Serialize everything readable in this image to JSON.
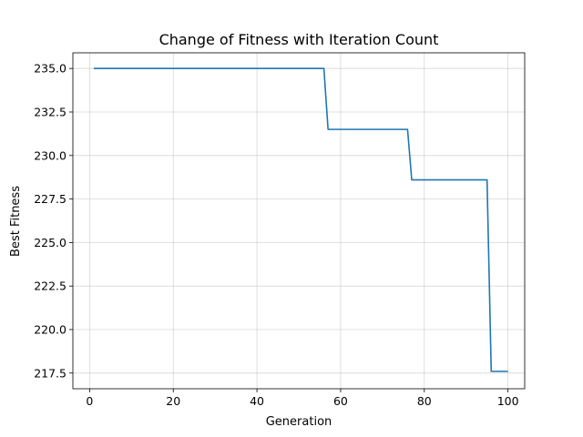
{
  "chart_data": {
    "type": "line",
    "title": "Change of Fitness with Iteration Count",
    "xlabel": "Generation",
    "ylabel": "Best Fitness",
    "xlim": [
      -4,
      104
    ],
    "ylim": [
      216.6,
      235.9
    ],
    "xticks": [
      0,
      20,
      40,
      60,
      80,
      100
    ],
    "yticks": [
      217.5,
      220.0,
      222.5,
      225.0,
      227.5,
      230.0,
      232.5,
      235.0
    ],
    "xtick_labels": [
      "0",
      "20",
      "40",
      "60",
      "80",
      "100"
    ],
    "ytick_labels": [
      "217.5",
      "220.0",
      "222.5",
      "225.0",
      "227.5",
      "230.0",
      "232.5",
      "235.0"
    ],
    "grid": true,
    "series": [
      {
        "color": "#1f77b4",
        "x": [
          1,
          56,
          57,
          76,
          77,
          95,
          96,
          100
        ],
        "y": [
          235.0,
          235.0,
          231.5,
          231.5,
          228.6,
          228.6,
          217.6,
          217.6
        ]
      }
    ]
  }
}
